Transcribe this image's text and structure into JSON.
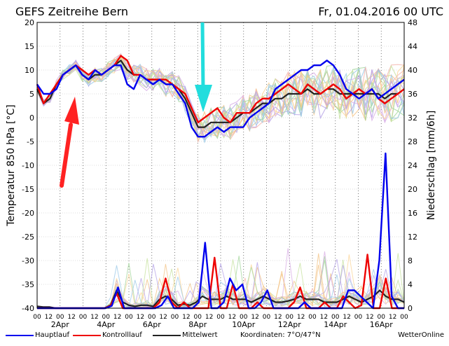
{
  "header": {
    "title": "GEFS Zeitreihe Bern",
    "datetime": "Fr, 01.04.2016 00 UTC"
  },
  "axes": {
    "left_label": "Temperatur 850 hPa [°C]",
    "right_label": "Niederschlag [mm/6h]"
  },
  "legend": {
    "hauptlauf": "Hauptlauf",
    "kontrolllauf": "Kontrolllauf",
    "mittelwert": "Mittelwert",
    "koordinaten": "Koordinaten: 7°O/47°N",
    "brand": "WetterOnline"
  },
  "chart_data": {
    "type": "line",
    "title": "GEFS Zeitreihe Bern",
    "ylabel": "Temperatur 850 hPa [°C]",
    "y2label": "Niederschlag [mm/6h]",
    "ylim": [
      -40,
      20
    ],
    "y2lim": [
      0,
      48
    ],
    "yticks": [
      20,
      15,
      10,
      5,
      0,
      -5,
      -10,
      -15,
      -20,
      -25,
      -30,
      -35,
      -40
    ],
    "y2ticks": [
      48,
      44,
      40,
      36,
      32,
      28,
      24,
      20,
      16,
      12,
      8,
      4,
      0
    ],
    "hour_ticks": [
      "00",
      "12",
      "00",
      "12",
      "00",
      "12",
      "00",
      "12",
      "00",
      "12",
      "00",
      "12",
      "00",
      "12",
      "00",
      "12",
      "00",
      "12",
      "00",
      "12",
      "00",
      "12",
      "00",
      "12",
      "00",
      "12",
      "00",
      "12",
      "00",
      "12",
      "00",
      "12",
      "00"
    ],
    "date_ticks": [
      "2Apr",
      "4Apr",
      "6Apr",
      "8Apr",
      "10Apr",
      "12Apr",
      "14Apr",
      "16Apr"
    ],
    "x_step_hours": 6,
    "grid": true,
    "legend_position": "bottom",
    "series": [
      {
        "name": "Hauptlauf",
        "color": "#0000ee",
        "axis": "temperature",
        "values": [
          7,
          5,
          5,
          6,
          9,
          10,
          11,
          9,
          8,
          10,
          9,
          10,
          11,
          11,
          7,
          6,
          9,
          8,
          7,
          8,
          7,
          7,
          5,
          3,
          -2,
          -4,
          -4,
          -3,
          -2,
          -3,
          -2,
          -2,
          -2,
          0,
          1,
          2,
          3,
          6,
          7,
          8,
          9,
          10,
          10,
          11,
          11,
          12,
          11,
          9,
          6,
          5,
          4,
          5,
          6,
          4,
          5,
          6,
          7,
          8
        ]
      },
      {
        "name": "Kontrolllauf",
        "color": "#ee0000",
        "axis": "temperature",
        "values": [
          7,
          3,
          5,
          7,
          9,
          10,
          11,
          10,
          9,
          10,
          9,
          10,
          11,
          13,
          12,
          9,
          9,
          8,
          8,
          8,
          8,
          7,
          6,
          5,
          2,
          -1,
          0,
          1,
          2,
          0,
          -1,
          1,
          1,
          1,
          3,
          4,
          4,
          5,
          6,
          7,
          6,
          5,
          7,
          6,
          5,
          6,
          7,
          6,
          4,
          5,
          6,
          5,
          6,
          4,
          3,
          4,
          5,
          6
        ]
      },
      {
        "name": "Mittelwert",
        "color": "#222222",
        "axis": "temperature",
        "values": [
          6,
          3,
          4,
          7,
          9,
          10,
          11,
          9,
          8,
          9,
          9,
          10,
          11,
          12,
          10,
          9,
          9,
          8,
          8,
          8,
          7,
          7,
          6,
          4,
          1,
          -2,
          -2,
          -1,
          -1,
          -1,
          -1,
          0,
          1,
          1,
          2,
          3,
          3,
          4,
          4,
          5,
          5,
          5,
          6,
          5,
          5,
          6,
          6,
          5,
          5,
          5,
          5,
          5,
          5,
          5,
          4,
          5,
          5,
          6
        ]
      },
      {
        "name": "Hauptlauf",
        "color": "#0000ee",
        "axis": "precipitation",
        "values": [
          0,
          0,
          0,
          0,
          0,
          0,
          0,
          0,
          0,
          0,
          0,
          0,
          0.4,
          3.5,
          0,
          0,
          0,
          0,
          0,
          0,
          0.5,
          2,
          0,
          0,
          0,
          0,
          1,
          11,
          0,
          0,
          1,
          5,
          3,
          4,
          0,
          0,
          1,
          3,
          0,
          0,
          0,
          0,
          0,
          1,
          0,
          0,
          0,
          0,
          0,
          0,
          3,
          3,
          2,
          1,
          0,
          8,
          26,
          2,
          0,
          0
        ]
      },
      {
        "name": "Kontrolllauf",
        "color": "#ee0000",
        "axis": "precipitation",
        "values": [
          0,
          0,
          0,
          0,
          0,
          0,
          0,
          0,
          0,
          0,
          0,
          0,
          0.4,
          2.5,
          0,
          0,
          0,
          0,
          0,
          0,
          1,
          5,
          1,
          0,
          1,
          0,
          0,
          0,
          0,
          8.5,
          0,
          0,
          4,
          0,
          0,
          0,
          1,
          0,
          0,
          0,
          0,
          0,
          1,
          3.5,
          0,
          0,
          0,
          1,
          0,
          0,
          2,
          1,
          0,
          0.5,
          9,
          0,
          0,
          5,
          0,
          0,
          0
        ]
      },
      {
        "name": "Mittelwert",
        "color": "#222222",
        "axis": "precipitation",
        "values": [
          0.3,
          0.2,
          0.2,
          0,
          0,
          0,
          0,
          0,
          0,
          0,
          0,
          0,
          0.5,
          3,
          1,
          0.5,
          0.3,
          0.5,
          0.5,
          0.3,
          1.5,
          2,
          1.5,
          0.5,
          0.7,
          0.5,
          1,
          2,
          1.5,
          1.5,
          1.5,
          2,
          1.5,
          1.5,
          1.5,
          1,
          1.5,
          2,
          1.5,
          1,
          1,
          1.2,
          1.5,
          2,
          1.5,
          1.5,
          1.5,
          1,
          1,
          1,
          1.5,
          2,
          1.5,
          1,
          1.5,
          2,
          3,
          2,
          1.5,
          1.5,
          1
        ]
      }
    ]
  },
  "colors": {
    "hauptlauf": "#0000ee",
    "kontrolllauf": "#ee0000",
    "mittelwert": "#222222",
    "arrow_red": "#ff2222",
    "arrow_cyan": "#22dddd"
  }
}
